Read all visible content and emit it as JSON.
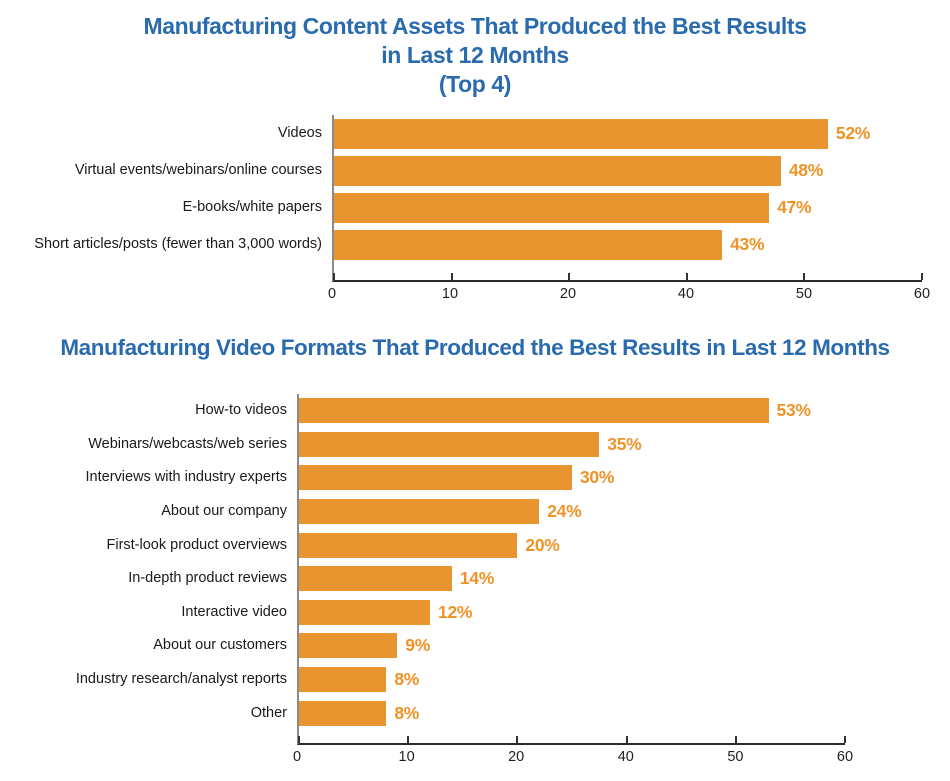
{
  "colors": {
    "bar": "#E8952F",
    "value_label": "#F09327",
    "title": "#2A6BAD",
    "axis": "#333333",
    "text": "#1A1A1A",
    "background": "#FFFFFF"
  },
  "chart_data": [
    {
      "type": "bar",
      "orientation": "horizontal",
      "title": "Manufacturing Content Assets That Produced the Best Results in Last 12 Months (Top 4)",
      "title_lines": [
        "Manufacturing Content Assets That Produced the Best Results",
        "in Last 12 Months",
        "(Top 4)"
      ],
      "categories": [
        "Videos",
        "Virtual events/webinars/online courses",
        "E-books/white papers",
        "Short articles/posts (fewer than 3,000 words)"
      ],
      "values": [
        52,
        48,
        47,
        43
      ],
      "value_labels": [
        "52%",
        "48%",
        "47%",
        "43%"
      ],
      "xtick_labels": [
        "0",
        "10",
        "20",
        "40",
        "50",
        "60"
      ],
      "xlim": [
        0,
        60
      ],
      "grid": false,
      "legend": null,
      "xlabel": "",
      "ylabel": ""
    },
    {
      "type": "bar",
      "orientation": "horizontal",
      "title": "Manufacturing Video Formats That Produced the Best Results in Last 12 Months",
      "title_lines": [
        "Manufacturing Video Formats That Produced the Best Results in Last 12 Months"
      ],
      "categories": [
        "How-to videos",
        "Webinars/webcasts/web series",
        "Interviews with industry experts",
        "About our company",
        "First-look product overviews",
        "In-depth product reviews",
        "Interactive video",
        "About our customers",
        "Industry research/analyst reports",
        "Other"
      ],
      "values": [
        53,
        35,
        30,
        24,
        20,
        14,
        12,
        9,
        8,
        8
      ],
      "value_labels": [
        "53%",
        "35%",
        "30%",
        "24%",
        "20%",
        "14%",
        "12%",
        "9%",
        "8%",
        "8%"
      ],
      "xtick_labels": [
        "0",
        "10",
        "20",
        "40",
        "50",
        "60"
      ],
      "xlim": [
        0,
        60
      ],
      "grid": false,
      "legend": null,
      "xlabel": "",
      "ylabel": ""
    }
  ]
}
